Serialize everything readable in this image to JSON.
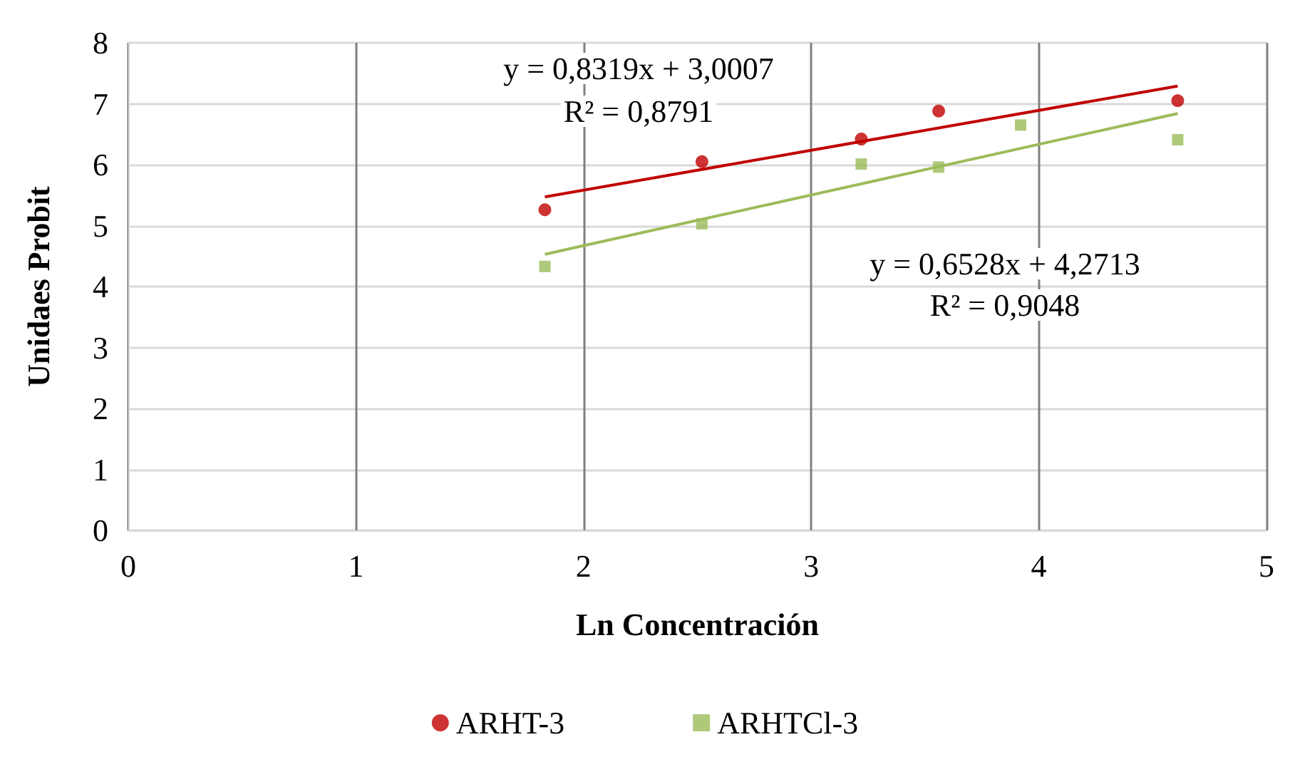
{
  "chart_data": {
    "type": "scatter",
    "xlabel": "Ln Concentración",
    "ylabel": "Unidaes Probit",
    "xlim": [
      0,
      5
    ],
    "xticks": [
      0,
      1,
      2,
      3,
      4,
      5
    ],
    "ylim": [
      0,
      8
    ],
    "yticks": [
      0,
      1,
      2,
      3,
      4,
      5,
      6,
      7,
      8
    ],
    "grid": true,
    "legend": "bottom",
    "series": [
      {
        "name": "ARHT-3",
        "color": "#c00000",
        "marker": "circle",
        "x": [
          1.83,
          2.52,
          3.22,
          3.56,
          4.61
        ],
        "values": [
          5.26,
          6.05,
          6.42,
          6.88,
          7.05
        ]
      },
      {
        "name": "ARHTCl-3",
        "color": "#9bbb59",
        "marker": "square",
        "x": [
          1.83,
          2.52,
          3.22,
          3.56,
          3.92,
          4.61
        ],
        "values": [
          4.33,
          5.03,
          6.01,
          5.96,
          6.65,
          6.41
        ]
      },
      {
        "type": "line",
        "color": "#c00000",
        "marker": "none",
        "x": [
          1.83,
          4.61
        ],
        "values": [
          5.47,
          7.29
        ]
      },
      {
        "type": "line",
        "color": "#9bbb59",
        "marker": "none",
        "x": [
          1.83,
          4.61
        ],
        "values": [
          4.53,
          6.84
        ]
      }
    ],
    "annotations": [
      "y = 0,8319x + 3,0007",
      "R² = 0,8791",
      "y = 0,6528x + 4,2713",
      "R² = 0,9048"
    ]
  }
}
